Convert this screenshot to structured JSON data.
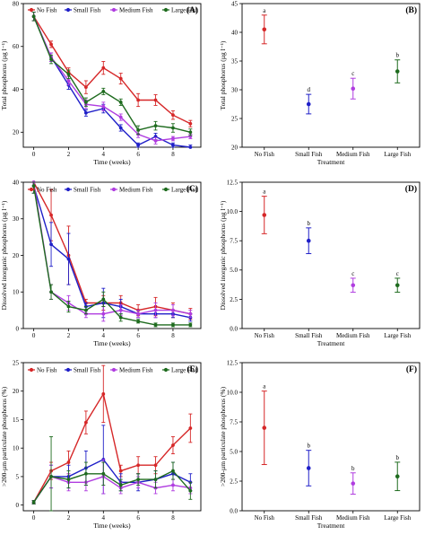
{
  "colors": {
    "No Fish": "#d62728",
    "Small Fish": "#1f1fc8",
    "Medium Fish": "#b03de0",
    "Large Fish": "#1e6b1e"
  },
  "chart_data": [
    {
      "id": "A",
      "type": "line",
      "panel_label": "(A)",
      "xlabel": "Time (weeks)",
      "ylabel": "Total phosphorus (µg l⁻¹)",
      "x": [
        0,
        1,
        2,
        3,
        4,
        5,
        6,
        7,
        8,
        9
      ],
      "xticks": [
        0,
        2,
        4,
        6,
        8
      ],
      "xlim": [
        -0.6,
        9.6
      ],
      "ylim": [
        13,
        80
      ],
      "yticks": [
        20,
        40,
        60,
        80
      ],
      "grid": false,
      "legend": "top-left",
      "series": [
        {
          "name": "No Fish",
          "values": [
            74,
            61,
            48,
            41,
            50,
            45,
            35,
            35,
            28,
            24
          ],
          "err": [
            2,
            1.5,
            2,
            3,
            3,
            2.5,
            3,
            2.5,
            2,
            1.5
          ]
        },
        {
          "name": "Small Fish",
          "values": [
            74,
            55,
            42,
            29,
            31,
            22,
            14,
            18,
            14,
            13
          ],
          "err": [
            2,
            2,
            2,
            1.5,
            2,
            1.5,
            1,
            1.5,
            1,
            1
          ]
        },
        {
          "name": "Medium Fish",
          "values": [
            74,
            55,
            44,
            33,
            32,
            27,
            19,
            16,
            17,
            18
          ],
          "err": [
            2,
            2,
            2,
            2,
            2,
            1.5,
            1.5,
            1.5,
            1,
            1
          ]
        },
        {
          "name": "Large Fish",
          "values": [
            74,
            54,
            47,
            34,
            39,
            34,
            21,
            23,
            22,
            20
          ],
          "err": [
            2,
            2,
            2,
            2,
            1.5,
            1.5,
            2,
            2,
            2,
            1.5
          ]
        }
      ]
    },
    {
      "id": "B",
      "type": "scatter",
      "panel_label": "(B)",
      "xlabel": "Treatment",
      "ylabel": "Total phosphorus (µg l⁻¹)",
      "categories": [
        "No Fish",
        "Small Fish",
        "Medium Fish",
        "Large Fish"
      ],
      "values": [
        40.5,
        27.5,
        30.2,
        33.2
      ],
      "err": [
        2.5,
        1.7,
        1.8,
        2.0
      ],
      "letters": [
        "a",
        "d",
        "c",
        "b"
      ],
      "ylim": [
        20,
        45
      ],
      "yticks": [
        20,
        25,
        30,
        35,
        40,
        45
      ],
      "grid": false
    },
    {
      "id": "C",
      "type": "line",
      "panel_label": "(C)",
      "xlabel": "Time (weeks)",
      "ylabel": "Dissolved inorganic phosphorus (µg l⁻¹)",
      "x": [
        0,
        1,
        2,
        3,
        4,
        5,
        6,
        7,
        8,
        9
      ],
      "xticks": [
        0,
        2,
        4,
        6,
        8
      ],
      "xlim": [
        -0.6,
        9.6
      ],
      "ylim": [
        0,
        40
      ],
      "yticks": [
        0,
        10,
        20,
        30,
        40
      ],
      "grid": false,
      "legend": "top",
      "series": [
        {
          "name": "No Fish",
          "values": [
            40,
            31,
            20,
            7,
            7,
            7,
            5,
            6,
            5,
            4
          ],
          "err": [
            2,
            7,
            8,
            1,
            2,
            2,
            1.5,
            2.5,
            2,
            1.5
          ]
        },
        {
          "name": "Small Fish",
          "values": [
            39,
            23,
            19,
            6,
            7,
            6,
            4,
            4,
            4,
            3
          ],
          "err": [
            2,
            6,
            7,
            1,
            4,
            2,
            1,
            1,
            1,
            1
          ]
        },
        {
          "name": "Medium Fish",
          "values": [
            40,
            10,
            7,
            4,
            4,
            5,
            4,
            5,
            5,
            4
          ],
          "err": [
            2,
            2,
            2,
            1,
            2,
            1.5,
            1,
            2,
            1.5,
            1
          ]
        },
        {
          "name": "Large Fish",
          "values": [
            39,
            10,
            6,
            5,
            8,
            3,
            2,
            1,
            1,
            1
          ],
          "err": [
            2,
            2,
            1.5,
            1,
            2,
            1,
            0.5,
            0.5,
            0.5,
            0.5
          ]
        }
      ]
    },
    {
      "id": "D",
      "type": "scatter",
      "panel_label": "(D)",
      "xlabel": "Treatment",
      "ylabel": "Dissolved inorganic phosphorus (µg l⁻¹)",
      "categories": [
        "No Fish",
        "Small Fish",
        "Medium Fish",
        "Large Fish"
      ],
      "values": [
        9.7,
        7.5,
        3.7,
        3.7
      ],
      "err": [
        1.6,
        1.1,
        0.6,
        0.6
      ],
      "letters": [
        "a",
        "b",
        "c",
        "c"
      ],
      "ylim": [
        0,
        12.5
      ],
      "yticks": [
        0,
        2.5,
        5,
        7.5,
        10,
        12.5
      ],
      "ytick_labels": [
        "0.0",
        "2.5",
        "5.0",
        "7.5",
        "10.0",
        "12.5"
      ],
      "grid": false
    },
    {
      "id": "E",
      "type": "line",
      "panel_label": "(E)",
      "xlabel": "Time (weeks)",
      "ylabel": ">200-µm particulate phosphorus (%)",
      "x": [
        0,
        1,
        2,
        3,
        4,
        5,
        6,
        7,
        8,
        9
      ],
      "xticks": [
        0,
        2,
        4,
        6,
        8
      ],
      "xlim": [
        -0.6,
        9.6
      ],
      "ylim": [
        -1,
        25
      ],
      "yticks": [
        0,
        5,
        10,
        15,
        20,
        25
      ],
      "grid": false,
      "legend": "top",
      "series": [
        {
          "name": "No Fish",
          "values": [
            0.5,
            6,
            7.5,
            14.5,
            19.5,
            6,
            7,
            7,
            10.5,
            13.5
          ],
          "err": [
            0.3,
            1.5,
            2,
            2,
            5,
            1,
            1.5,
            1.5,
            1.5,
            2.5
          ]
        },
        {
          "name": "Small Fish",
          "values": [
            0.5,
            5,
            5,
            6.5,
            8,
            4,
            4,
            4.5,
            5.5,
            4
          ],
          "err": [
            0.3,
            2,
            2,
            3,
            6,
            1.5,
            1.5,
            1.5,
            2,
            1.5
          ]
        },
        {
          "name": "Medium Fish",
          "values": [
            0.5,
            5,
            4,
            4,
            5,
            3,
            4,
            3,
            3.5,
            3
          ],
          "err": [
            0.3,
            2,
            1.5,
            1.5,
            3,
            1,
            1,
            1,
            1,
            1
          ]
        },
        {
          "name": "Large Fish",
          "values": [
            0.5,
            5,
            4.5,
            5.5,
            5.5,
            3.5,
            4.5,
            4.5,
            6,
            2.5
          ],
          "err": [
            0.3,
            7,
            1.5,
            2,
            2,
            1,
            1,
            1.5,
            1.5,
            1.5
          ]
        }
      ]
    },
    {
      "id": "F",
      "type": "scatter",
      "panel_label": "(F)",
      "xlabel": "Treatment",
      "ylabel": ">200-µm particulate phosphorus (%)",
      "categories": [
        "No Fish",
        "Small Fish",
        "Medium Fish",
        "Large Fish"
      ],
      "values": [
        7.0,
        3.6,
        2.3,
        2.9
      ],
      "err": [
        3.1,
        1.5,
        0.9,
        1.2
      ],
      "letters": [
        "a",
        "b",
        "b",
        "b"
      ],
      "ylim": [
        0,
        12.5
      ],
      "yticks": [
        0,
        2.5,
        5,
        7.5,
        10,
        12.5
      ],
      "ytick_labels": [
        "0.0",
        "2.5",
        "5.0",
        "7.5",
        "10.0",
        "12.5"
      ],
      "grid": false
    }
  ]
}
